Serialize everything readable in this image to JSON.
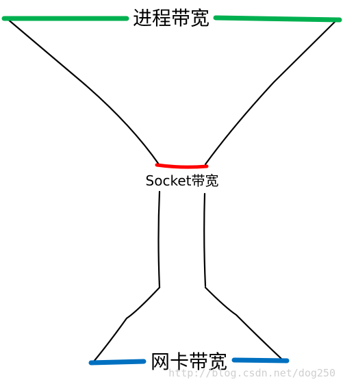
{
  "labels": {
    "process_bandwidth": "进程带宽",
    "socket_bandwidth": "Socket带宽",
    "nic_bandwidth": "网卡带宽"
  },
  "watermark": "http://blog.csdn.net/dog250",
  "colors": {
    "process_line": "#00b050",
    "socket_line": "#ff0000",
    "nic_line": "#0070c0",
    "outline": "#000000",
    "background": "#ffffff"
  }
}
